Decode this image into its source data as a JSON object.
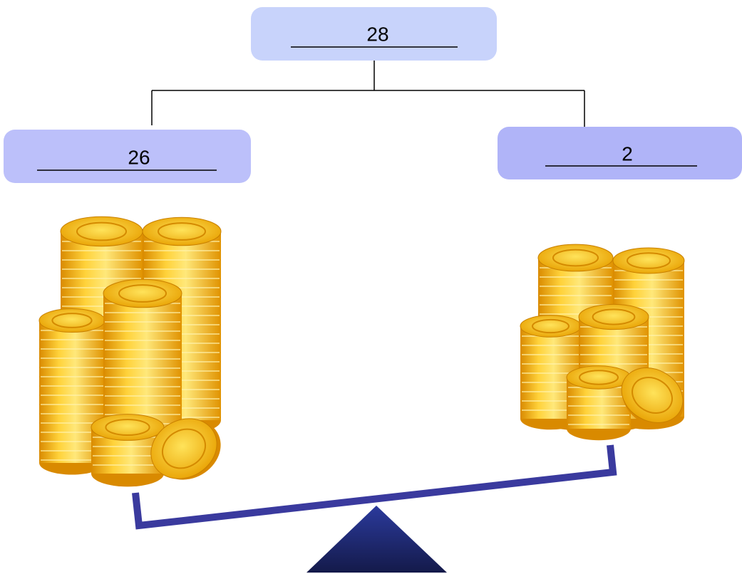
{
  "nodes": [
    {
      "label": "28"
    },
    {
      "label": "26"
    },
    {
      "label": "2"
    }
  ]
}
